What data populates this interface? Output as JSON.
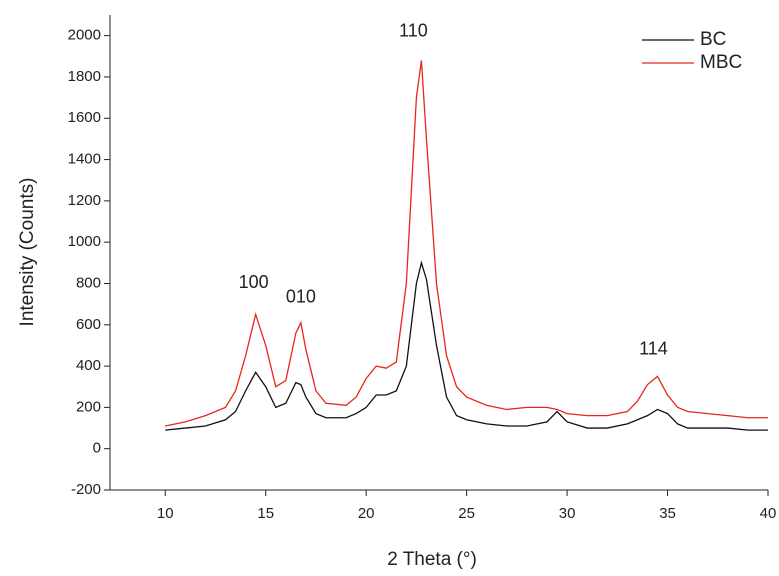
{
  "chart_data": {
    "type": "line",
    "x_label": "2 Theta (°)",
    "y_label": "Intensity (Counts)",
    "x": [
      10,
      11,
      12,
      13,
      13.5,
      14,
      14.5,
      15,
      15.5,
      16,
      16.5,
      16.75,
      17,
      17.5,
      18,
      19,
      19.5,
      20,
      20.5,
      21,
      21.5,
      22,
      22.5,
      22.75,
      23,
      23.5,
      24,
      24.5,
      25,
      26,
      27,
      28,
      29,
      29.5,
      30,
      31,
      32,
      33,
      33.5,
      34,
      34.5,
      35,
      35.5,
      36,
      37,
      38,
      39,
      40
    ],
    "series": [
      {
        "name": "BC",
        "color": "#111111",
        "values": [
          90,
          100,
          110,
          140,
          180,
          280,
          370,
          300,
          200,
          220,
          320,
          310,
          250,
          170,
          150,
          150,
          170,
          200,
          260,
          260,
          280,
          400,
          800,
          900,
          820,
          500,
          250,
          160,
          140,
          120,
          110,
          110,
          130,
          180,
          130,
          100,
          100,
          120,
          140,
          160,
          190,
          170,
          120,
          100,
          100,
          100,
          90,
          90
        ]
      },
      {
        "name": "MBC",
        "color": "#e8261c",
        "values": [
          110,
          130,
          160,
          200,
          280,
          450,
          650,
          500,
          300,
          330,
          560,
          610,
          480,
          280,
          220,
          210,
          250,
          340,
          400,
          390,
          420,
          800,
          1700,
          1880,
          1500,
          800,
          450,
          300,
          250,
          210,
          190,
          200,
          200,
          190,
          170,
          160,
          160,
          180,
          230,
          310,
          350,
          260,
          200,
          180,
          170,
          160,
          150,
          150
        ]
      }
    ],
    "annotations": [
      {
        "text": "100",
        "x": 14.4,
        "y": 800
      },
      {
        "text": "010",
        "x": 16.75,
        "y": 730
      },
      {
        "text": "110",
        "x": 22.35,
        "y": 2020
      },
      {
        "text": "114",
        "x": 34.3,
        "y": 480
      }
    ],
    "xlim": [
      7.25,
      40
    ],
    "ylim": [
      -200,
      2100
    ],
    "xticks": [
      10,
      15,
      20,
      25,
      30,
      35,
      40
    ],
    "yticks": [
      -200,
      0,
      200,
      400,
      600,
      800,
      1000,
      1200,
      1400,
      1600,
      1800,
      2000
    ],
    "legend": "upper right"
  }
}
